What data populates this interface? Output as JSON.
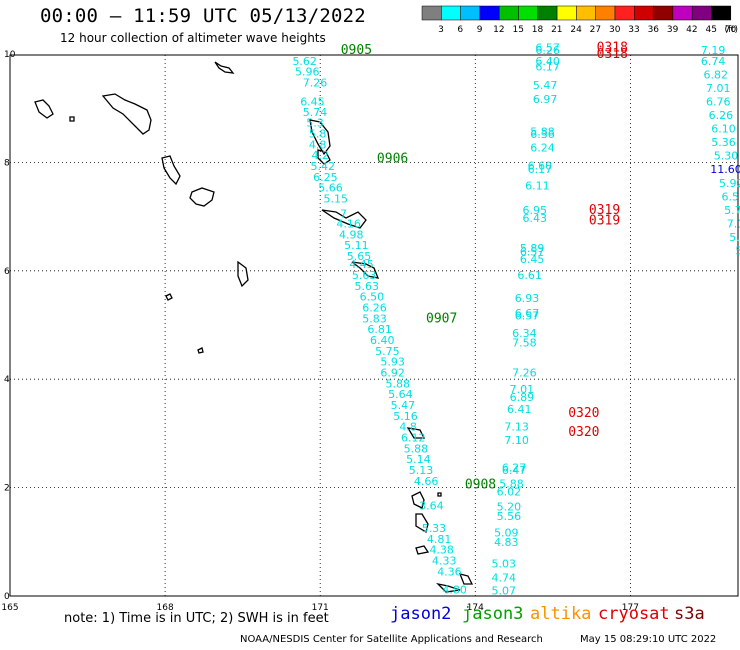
{
  "header": {
    "title": "00:00 – 11:59 UTC 05/13/2022",
    "subtitle": "12 hour collection of altimeter wave heights"
  },
  "colorbar": {
    "colors": [
      "#7f7f7f",
      "#00ffff",
      "#00bfff",
      "#0000ff",
      "#00c000",
      "#00e000",
      "#008000",
      "#ffff00",
      "#ffbf00",
      "#ff8000",
      "#ff2020",
      "#d00000",
      "#900000",
      "#c000c0",
      "#800080",
      "#000000"
    ],
    "ticks": [
      "3",
      "6",
      "9",
      "12",
      "15",
      "18",
      "21",
      "24",
      "27",
      "30",
      "33",
      "36",
      "39",
      "42",
      "45",
      "70"
    ],
    "unit": "(ft)"
  },
  "axes": {
    "x_ticks": [
      "165",
      "168",
      "171",
      "174",
      "177"
    ],
    "y_ticks": [
      "10",
      "8",
      "6",
      "4",
      "2",
      "0"
    ]
  },
  "tracks": [
    {
      "satellite": "jason3",
      "color": "#00e0e0",
      "values": [
        {
          "v": "5.62",
          "lon": 170.7,
          "lat": 9.8
        },
        {
          "v": "5.96",
          "lon": 170.75,
          "lat": 9.6
        },
        {
          "v": "7.26",
          "lon": 170.9,
          "lat": 9.4
        },
        {
          "v": "6.45",
          "lon": 170.85,
          "lat": 9.05
        },
        {
          "v": "5.74",
          "lon": 170.9,
          "lat": 8.86
        },
        {
          "v": "5.3",
          "lon": 170.9,
          "lat": 8.66
        },
        {
          "v": "5.8",
          "lon": 170.95,
          "lat": 8.46
        },
        {
          "v": "4.8",
          "lon": 170.95,
          "lat": 8.26
        },
        {
          "v": "4.2",
          "lon": 171.0,
          "lat": 8.06
        },
        {
          "v": "5.42",
          "lon": 171.05,
          "lat": 7.86
        },
        {
          "v": "6.25",
          "lon": 171.1,
          "lat": 7.66
        },
        {
          "v": "5.66",
          "lon": 171.2,
          "lat": 7.46
        },
        {
          "v": "5.15",
          "lon": 171.3,
          "lat": 7.26
        },
        {
          "v": "7",
          "lon": 171.45,
          "lat": 6.98
        },
        {
          "v": "4.16",
          "lon": 171.55,
          "lat": 6.8
        },
        {
          "v": "4.98",
          "lon": 171.6,
          "lat": 6.6
        },
        {
          "v": "5.11",
          "lon": 171.7,
          "lat": 6.4
        },
        {
          "v": "5.65",
          "lon": 171.75,
          "lat": 6.2
        },
        {
          "v": "4.45",
          "lon": 171.8,
          "lat": 6.05
        },
        {
          "v": "5.63",
          "lon": 171.85,
          "lat": 5.85
        },
        {
          "v": "5.63",
          "lon": 171.9,
          "lat": 5.65
        },
        {
          "v": "6.50",
          "lon": 172.0,
          "lat": 5.45
        },
        {
          "v": "6.26",
          "lon": 172.05,
          "lat": 5.25
        },
        {
          "v": "5.83",
          "lon": 172.05,
          "lat": 5.05
        },
        {
          "v": "6.81",
          "lon": 172.15,
          "lat": 4.85
        },
        {
          "v": "6.40",
          "lon": 172.2,
          "lat": 4.65
        },
        {
          "v": "5.75",
          "lon": 172.3,
          "lat": 4.45
        },
        {
          "v": "5.93",
          "lon": 172.4,
          "lat": 4.25
        },
        {
          "v": "6.92",
          "lon": 172.4,
          "lat": 4.05
        },
        {
          "v": "5.88",
          "lon": 172.5,
          "lat": 3.85
        },
        {
          "v": "5.64",
          "lon": 172.55,
          "lat": 3.65
        },
        {
          "v": "5.47",
          "lon": 172.6,
          "lat": 3.45
        },
        {
          "v": "5.16",
          "lon": 172.65,
          "lat": 3.25
        },
        {
          "v": "4.8",
          "lon": 172.7,
          "lat": 3.05
        },
        {
          "v": "6.12",
          "lon": 172.8,
          "lat": 2.85
        },
        {
          "v": "5.88",
          "lon": 172.85,
          "lat": 2.65
        },
        {
          "v": "5.14",
          "lon": 172.9,
          "lat": 2.45
        },
        {
          "v": "5.13",
          "lon": 172.95,
          "lat": 2.25
        },
        {
          "v": "4.66",
          "lon": 173.05,
          "lat": 2.05
        },
        {
          "v": "3.64",
          "lon": 173.15,
          "lat": 1.6
        },
        {
          "v": "5.33",
          "lon": 173.2,
          "lat": 1.18
        },
        {
          "v": "4.81",
          "lon": 173.3,
          "lat": 0.98
        },
        {
          "v": "4.38",
          "lon": 173.35,
          "lat": 0.78
        },
        {
          "v": "4.33",
          "lon": 173.4,
          "lat": 0.58
        },
        {
          "v": "4.36",
          "lon": 173.5,
          "lat": 0.38
        },
        {
          "v": "4.80",
          "lon": 173.6,
          "lat": 0.05
        },
        {
          "v": "5.07",
          "lon": 174.55,
          "lat": 0.03
        },
        {
          "v": "4.74",
          "lon": 174.55,
          "lat": 0.27
        },
        {
          "v": "5.03",
          "lon": 174.55,
          "lat": 0.53
        },
        {
          "v": "4.83",
          "lon": 174.6,
          "lat": 0.92
        },
        {
          "v": "5.09",
          "lon": 174.6,
          "lat": 1.1
        },
        {
          "v": "5.56",
          "lon": 174.65,
          "lat": 1.4
        },
        {
          "v": "5.20",
          "lon": 174.65,
          "lat": 1.58
        },
        {
          "v": "6.02",
          "lon": 174.65,
          "lat": 1.85
        },
        {
          "v": "5.88",
          "lon": 174.7,
          "lat": 2.0
        },
        {
          "v": "6.47",
          "lon": 174.75,
          "lat": 2.25
        },
        {
          "v": "6.27",
          "lon": 174.75,
          "lat": 2.3
        },
        {
          "v": "7.10",
          "lon": 174.8,
          "lat": 2.8
        },
        {
          "v": "7.13",
          "lon": 174.8,
          "lat": 3.05
        },
        {
          "v": "6.41",
          "lon": 174.85,
          "lat": 3.38
        },
        {
          "v": "6.89",
          "lon": 174.9,
          "lat": 3.6
        },
        {
          "v": "7.01",
          "lon": 174.9,
          "lat": 3.75
        },
        {
          "v": "7.26",
          "lon": 174.95,
          "lat": 4.05
        },
        {
          "v": "7.58",
          "lon": 174.95,
          "lat": 4.6
        },
        {
          "v": "6.34",
          "lon": 174.95,
          "lat": 4.78
        },
        {
          "v": "6.57",
          "lon": 175.0,
          "lat": 5.1
        },
        {
          "v": "6.67",
          "lon": 175.0,
          "lat": 5.15
        },
        {
          "v": "6.93",
          "lon": 175.0,
          "lat": 5.42
        },
        {
          "v": "6.61",
          "lon": 175.05,
          "lat": 5.85
        },
        {
          "v": "6.45",
          "lon": 175.1,
          "lat": 6.14
        },
        {
          "v": "6.57",
          "lon": 175.1,
          "lat": 6.28
        },
        {
          "v": "5.89",
          "lon": 175.1,
          "lat": 6.35
        },
        {
          "v": "6.43",
          "lon": 175.15,
          "lat": 6.9
        },
        {
          "v": "6.95",
          "lon": 175.15,
          "lat": 7.05
        },
        {
          "v": "6.11",
          "lon": 175.2,
          "lat": 7.5
        },
        {
          "v": "6.17",
          "lon": 175.25,
          "lat": 7.8
        },
        {
          "v": "6.60",
          "lon": 175.25,
          "lat": 7.87
        },
        {
          "v": "6.24",
          "lon": 175.3,
          "lat": 8.2
        },
        {
          "v": "6.36",
          "lon": 175.3,
          "lat": 8.45
        },
        {
          "v": "5.88",
          "lon": 175.3,
          "lat": 8.5
        },
        {
          "v": "6.97",
          "lon": 175.35,
          "lat": 9.1
        },
        {
          "v": "5.47",
          "lon": 175.35,
          "lat": 9.35
        },
        {
          "v": "6.17",
          "lon": 175.4,
          "lat": 9.7
        },
        {
          "v": "6.40",
          "lon": 175.4,
          "lat": 9.8
        },
        {
          "v": "6.26",
          "lon": 175.4,
          "lat": 10.0
        },
        {
          "v": "6.57",
          "lon": 175.4,
          "lat": 10.05
        }
      ]
    },
    {
      "satellite": "jason3-east",
      "color": "#00e0e0",
      "values": [
        {
          "v": "7.19",
          "lon": 178.6,
          "lat": 10.0
        },
        {
          "v": "6.74",
          "lon": 178.6,
          "lat": 9.8
        },
        {
          "v": "6.82",
          "lon": 178.65,
          "lat": 9.55
        },
        {
          "v": "7.01",
          "lon": 178.7,
          "lat": 9.3
        },
        {
          "v": "6.76",
          "lon": 178.7,
          "lat": 9.05
        },
        {
          "v": "6.26",
          "lon": 178.75,
          "lat": 8.8
        },
        {
          "v": "6.10",
          "lon": 178.8,
          "lat": 8.55
        },
        {
          "v": "5.36",
          "lon": 178.8,
          "lat": 8.3
        },
        {
          "v": "5.30",
          "lon": 178.85,
          "lat": 8.05
        },
        {
          "v": "5.92",
          "lon": 178.95,
          "lat": 7.55
        },
        {
          "v": "6.52",
          "lon": 179.0,
          "lat": 7.3
        },
        {
          "v": "5.76",
          "lon": 179.05,
          "lat": 7.05
        },
        {
          "v": "7.15",
          "lon": 179.1,
          "lat": 6.8
        },
        {
          "v": "5.84",
          "lon": 179.15,
          "lat": 6.55
        },
        {
          "v": "5.5",
          "lon": 179.2,
          "lat": 6.3
        },
        {
          "v": "6.1",
          "lon": 179.3,
          "lat": 6.05
        }
      ]
    },
    {
      "satellite": "jason3-east-blue",
      "color": "#0000e0",
      "values": [
        {
          "v": "11.60",
          "lon": 178.85,
          "lat": 7.8
        },
        {
          "v": "9.",
          "lon": 179.3,
          "lat": 5.8
        }
      ]
    }
  ],
  "time_labels": [
    {
      "t": "0905",
      "lon": 171.7,
      "lat": 10.0,
      "color": "#008000"
    },
    {
      "t": "0906",
      "lon": 172.4,
      "lat": 8.0,
      "color": "#008000"
    },
    {
      "t": "0907",
      "lon": 173.35,
      "lat": 5.05,
      "color": "#008000"
    },
    {
      "t": "0908",
      "lon": 174.1,
      "lat": 1.98,
      "color": "#008000"
    },
    {
      "t": "0318",
      "lon": 176.65,
      "lat": 10.05,
      "color": "#e00000"
    },
    {
      "t": "0318",
      "lon": 176.65,
      "lat": 9.93,
      "color": "#e00000"
    },
    {
      "t": "0319",
      "lon": 176.5,
      "lat": 7.05,
      "color": "#e00000"
    },
    {
      "t": "0319",
      "lon": 176.5,
      "lat": 6.85,
      "color": "#e00000"
    },
    {
      "t": "0320",
      "lon": 176.1,
      "lat": 3.3,
      "color": "#e00000"
    },
    {
      "t": "0320",
      "lon": 176.1,
      "lat": 2.95,
      "color": "#e00000"
    }
  ],
  "footer": {
    "note": "note: 1) Time is in UTC; 2) SWH is in feet",
    "satellites": [
      {
        "name": "jason2",
        "color": "#0000e0"
      },
      {
        "name": "jason3",
        "color": "#00a000"
      },
      {
        "name": "altika",
        "color": "#ff9000"
      },
      {
        "name": "cryosat",
        "color": "#e00000"
      },
      {
        "name": "s3a",
        "color": "#800000"
      }
    ],
    "credit": "NOAA/NESDIS Center for Satellite Applications and Research",
    "timestamp": "May 15 08:29:10 UTC 2022"
  }
}
